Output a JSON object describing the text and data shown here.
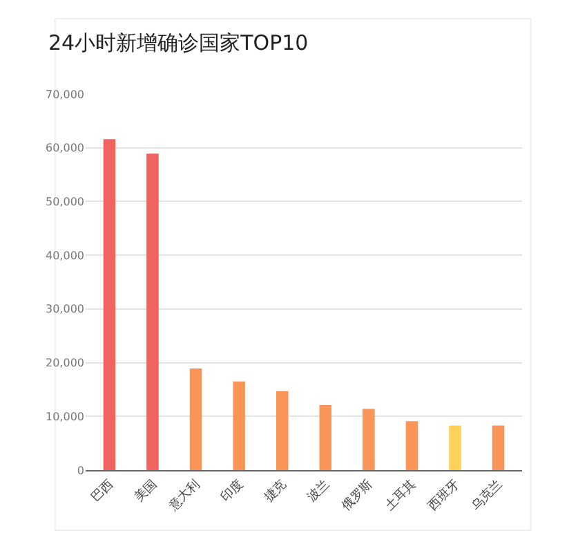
{
  "chart_data": {
    "type": "bar",
    "title": "24小时新增确诊国家TOP10",
    "categories": [
      "巴西",
      "美国",
      "意大利",
      "印度",
      "捷克",
      "波兰",
      "俄罗斯",
      "土耳其",
      "西班牙",
      "乌克兰"
    ],
    "values": [
      61600,
      58900,
      18900,
      16500,
      14700,
      12100,
      11400,
      9100,
      8300,
      8300
    ],
    "colors": [
      "#ef6461",
      "#ef6461",
      "#f99556",
      "#f99556",
      "#f99556",
      "#f99556",
      "#f99556",
      "#f99556",
      "#fdd25a",
      "#f99556"
    ],
    "ylim": [
      0,
      70000
    ],
    "yticks": [
      0,
      {
        "value": 10000,
        "label": "10,000"
      },
      {
        "value": 20000,
        "label": "20,000"
      },
      {
        "value": 30000,
        "label": "30,000"
      },
      {
        "value": 40000,
        "label": "40,000"
      },
      {
        "value": 50000,
        "label": "50,000"
      },
      {
        "value": 60000,
        "label": "60,000"
      },
      {
        "value": 70000,
        "label": "70,000"
      }
    ],
    "grid": "y"
  }
}
